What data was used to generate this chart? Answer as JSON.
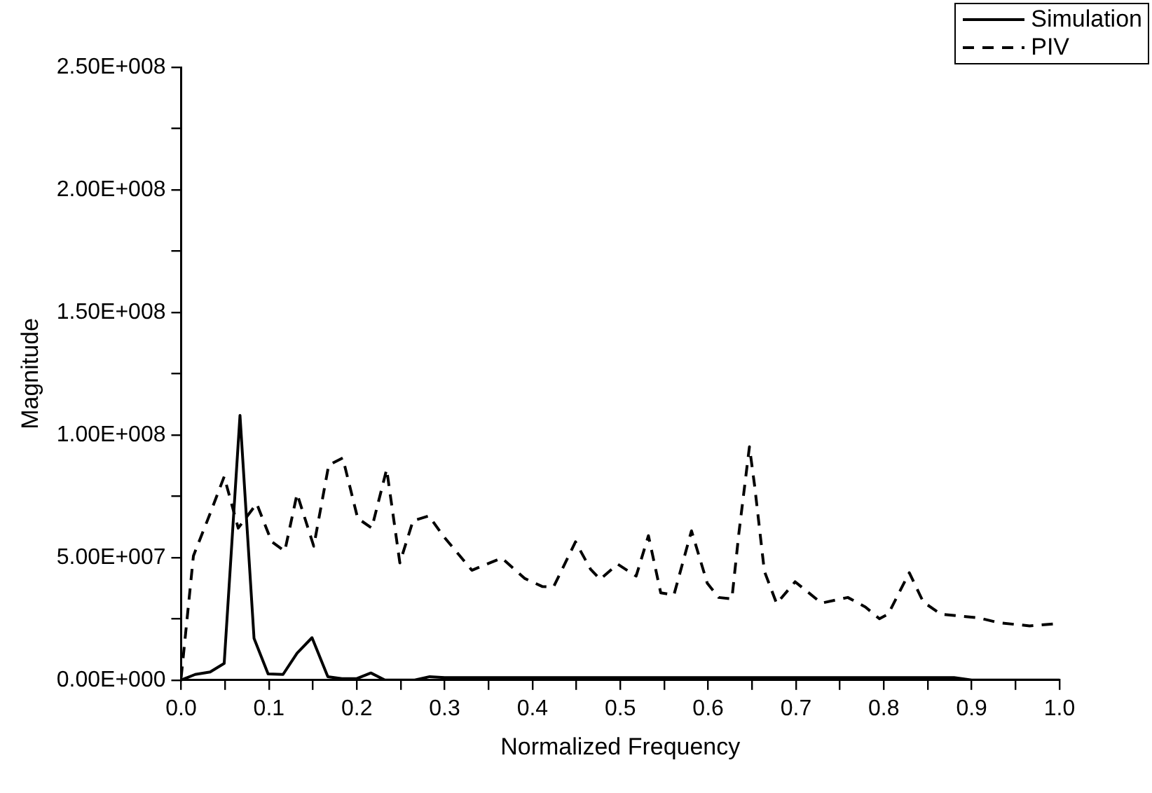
{
  "chart_data": {
    "type": "line",
    "xlabel": "Normalized Frequency",
    "ylabel": "Magnitude",
    "xlim": [
      0,
      1
    ],
    "ylim": [
      0,
      250000000
    ],
    "xticks": [
      {
        "value": 0,
        "label": "0.0"
      },
      {
        "value": 0.05,
        "label": null
      },
      {
        "value": 0.1,
        "label": "0.1"
      },
      {
        "value": 0.15,
        "label": null
      },
      {
        "value": 0.2,
        "label": "0.2"
      },
      {
        "value": 0.25,
        "label": null
      },
      {
        "value": 0.3,
        "label": "0.3"
      },
      {
        "value": 0.35,
        "label": null
      },
      {
        "value": 0.4,
        "label": "0.4"
      },
      {
        "value": 0.45,
        "label": null
      },
      {
        "value": 0.5,
        "label": "0.5"
      },
      {
        "value": 0.55,
        "label": null
      },
      {
        "value": 0.6,
        "label": "0.6"
      },
      {
        "value": 0.65,
        "label": null
      },
      {
        "value": 0.7,
        "label": "0.7"
      },
      {
        "value": 0.75,
        "label": null
      },
      {
        "value": 0.8,
        "label": "0.8"
      },
      {
        "value": 0.85,
        "label": null
      },
      {
        "value": 0.9,
        "label": "0.9"
      },
      {
        "value": 0.95,
        "label": null
      },
      {
        "value": 1,
        "label": "1.0"
      }
    ],
    "yticks": [
      {
        "value": 0,
        "label": "0.00E+000"
      },
      {
        "value": 25000000,
        "label": null
      },
      {
        "value": 50000000,
        "label": "5.00E+007"
      },
      {
        "value": 75000000,
        "label": null
      },
      {
        "value": 100000000,
        "label": "1.00E+008"
      },
      {
        "value": 125000000,
        "label": null
      },
      {
        "value": 150000000,
        "label": "1.50E+008"
      },
      {
        "value": 175000000,
        "label": null
      },
      {
        "value": 200000000,
        "label": "2.00E+008"
      },
      {
        "value": 225000000,
        "label": null
      },
      {
        "value": 250000000,
        "label": "2.50E+008"
      }
    ],
    "grid": false,
    "legend": "top right",
    "marker": "none",
    "series": [
      {
        "name": "Simulation",
        "color": "#000000",
        "line_style": "solid",
        "x": [
          0,
          0.016,
          0.033,
          0.049,
          0.067,
          0.083,
          0.099,
          0.116,
          0.132,
          0.149,
          0.167,
          0.183,
          0.2,
          0.216,
          0.232,
          0.25,
          0.266,
          0.283,
          0.3,
          0.88,
          0.9,
          1.0
        ],
        "values": [
          0,
          2300000,
          3300000,
          6800000,
          108000000,
          17000000,
          2500000,
          2300000,
          11000000,
          17300000,
          1400000,
          600000,
          600000,
          2900000,
          0,
          0,
          0,
          1400000,
          1000000,
          1000000,
          0,
          0
        ]
      },
      {
        "name": "PIV",
        "color": "#000000",
        "line_style": "dashed",
        "x": [
          0,
          0.014,
          0.032,
          0.049,
          0.065,
          0.086,
          0.103,
          0.118,
          0.132,
          0.151,
          0.168,
          0.184,
          0.201,
          0.217,
          0.234,
          0.249,
          0.264,
          0.282,
          0.299,
          0.331,
          0.365,
          0.391,
          0.411,
          0.424,
          0.449,
          0.466,
          0.477,
          0.497,
          0.518,
          0.532,
          0.546,
          0.561,
          0.581,
          0.599,
          0.612,
          0.627,
          0.635,
          0.647,
          0.653,
          0.664,
          0.678,
          0.699,
          0.729,
          0.759,
          0.779,
          0.795,
          0.805,
          0.829,
          0.845,
          0.865,
          0.908,
          0.931,
          0.966,
          1.0
        ],
        "values": [
          1000000,
          50700000,
          67000000,
          83000000,
          62000000,
          72000000,
          56500000,
          52600000,
          76000000,
          54600000,
          87700000,
          90600000,
          66000000,
          62000000,
          86000000,
          47800000,
          65000000,
          67000000,
          58500000,
          44800000,
          49800000,
          41500000,
          38200000,
          38000000,
          56400000,
          45300000,
          41100000,
          47300000,
          42400000,
          58900000,
          35600000,
          34700000,
          60900000,
          39500000,
          33700000,
          33100000,
          60000000,
          95200000,
          79000000,
          44400000,
          31200000,
          40100000,
          31400000,
          33700000,
          29800000,
          25000000,
          26900000,
          43800000,
          31800000,
          26900000,
          25400000,
          23400000,
          22100000,
          23100000
        ]
      }
    ]
  }
}
